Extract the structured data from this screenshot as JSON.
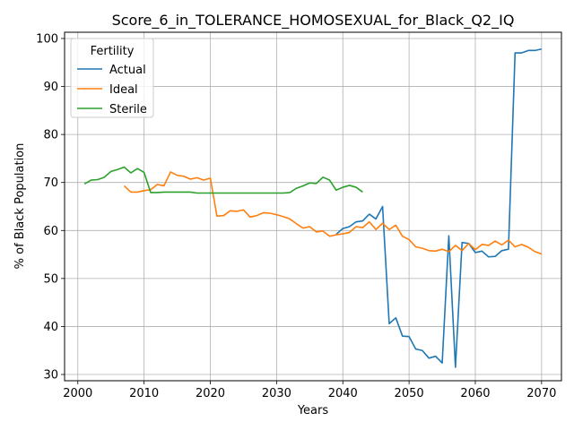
{
  "chart_data": {
    "type": "line",
    "title": "Score_6_in_TOLERANCE_HOMOSEXUAL_for_Black_Q2_IQ",
    "xlabel": "Years",
    "ylabel": "% of Black Population",
    "xlim": [
      1998,
      2073
    ],
    "ylim": [
      28.7,
      101.3
    ],
    "xticks": [
      2000,
      2010,
      2020,
      2030,
      2040,
      2050,
      2060,
      2070
    ],
    "yticks": [
      30,
      40,
      50,
      60,
      70,
      80,
      90,
      100
    ],
    "grid": true,
    "legend": {
      "title": "Fertility",
      "placement": "upper-left"
    },
    "series": [
      {
        "name": "Actual",
        "color": "#1f77b4",
        "x": [
          2039,
          2040,
          2041,
          2042,
          2043,
          2044,
          2045,
          2046,
          2047,
          2048,
          2049,
          2050,
          2051,
          2052,
          2053,
          2054,
          2055,
          2056,
          2057,
          2058,
          2059,
          2060,
          2061,
          2062,
          2063,
          2064,
          2065,
          2066,
          2067,
          2068,
          2069,
          2070
        ],
        "y": [
          59.2,
          60.4,
          60.8,
          61.8,
          62.0,
          63.4,
          62.4,
          65.0,
          40.6,
          41.8,
          38.0,
          37.9,
          35.3,
          35.0,
          33.4,
          33.8,
          32.4,
          58.9,
          31.5,
          57.5,
          57.3,
          55.4,
          55.7,
          54.5,
          54.6,
          55.8,
          56.1,
          97.0,
          97.0,
          97.5,
          97.5,
          97.8
        ]
      },
      {
        "name": "Ideal",
        "color": "#ff7f0e",
        "x": [
          2007,
          2008,
          2009,
          2010,
          2011,
          2012,
          2013,
          2014,
          2015,
          2016,
          2017,
          2018,
          2019,
          2020,
          2021,
          2022,
          2023,
          2024,
          2025,
          2026,
          2027,
          2028,
          2029,
          2030,
          2031,
          2032,
          2033,
          2034,
          2035,
          2036,
          2037,
          2038,
          2039,
          2040,
          2041,
          2042,
          2043,
          2044,
          2045,
          2046,
          2047,
          2048,
          2049,
          2050,
          2051,
          2052,
          2053,
          2054,
          2055,
          2056,
          2057,
          2058,
          2059,
          2060,
          2061,
          2062,
          2063,
          2064,
          2065,
          2066,
          2067,
          2068,
          2069,
          2070
        ],
        "y": [
          69.3,
          68.0,
          68.0,
          68.3,
          68.5,
          69.6,
          69.3,
          72.2,
          71.5,
          71.3,
          70.7,
          71.0,
          70.5,
          70.9,
          63.0,
          63.1,
          64.1,
          64.0,
          64.3,
          62.8,
          63.1,
          63.7,
          63.6,
          63.3,
          62.9,
          62.4,
          61.4,
          60.5,
          60.8,
          59.7,
          59.9,
          58.8,
          59.1,
          59.3,
          59.6,
          60.8,
          60.6,
          61.8,
          60.2,
          61.5,
          60.2,
          61.1,
          58.8,
          58.1,
          56.6,
          56.3,
          55.8,
          55.7,
          56.1,
          55.6,
          56.9,
          55.8,
          57.3,
          56.0,
          57.1,
          56.9,
          57.8,
          57.0,
          58.0,
          56.6,
          57.1,
          56.5,
          55.6,
          55.1
        ]
      },
      {
        "name": "Sterile",
        "color": "#2ca02c",
        "x": [
          2001,
          2002,
          2003,
          2004,
          2005,
          2006,
          2007,
          2008,
          2009,
          2010,
          2011,
          2012,
          2013,
          2014,
          2015,
          2016,
          2017,
          2018,
          2019,
          2020,
          2021,
          2022,
          2023,
          2024,
          2025,
          2026,
          2027,
          2028,
          2029,
          2030,
          2031,
          2032,
          2033,
          2034,
          2035,
          2036,
          2037,
          2038,
          2039,
          2040,
          2041,
          2042,
          2043
        ],
        "y": [
          69.7,
          70.5,
          70.6,
          71.1,
          72.3,
          72.7,
          73.2,
          72.0,
          72.9,
          72.1,
          67.9,
          67.9,
          68.0,
          68.0,
          68.0,
          68.0,
          68.0,
          67.8,
          67.8,
          67.8,
          67.8,
          67.8,
          67.8,
          67.8,
          67.8,
          67.8,
          67.8,
          67.8,
          67.8,
          67.8,
          67.8,
          67.9,
          68.8,
          69.3,
          69.9,
          69.8,
          71.1,
          70.5,
          68.4,
          69.0,
          69.4,
          69.0,
          68.0
        ]
      }
    ]
  }
}
